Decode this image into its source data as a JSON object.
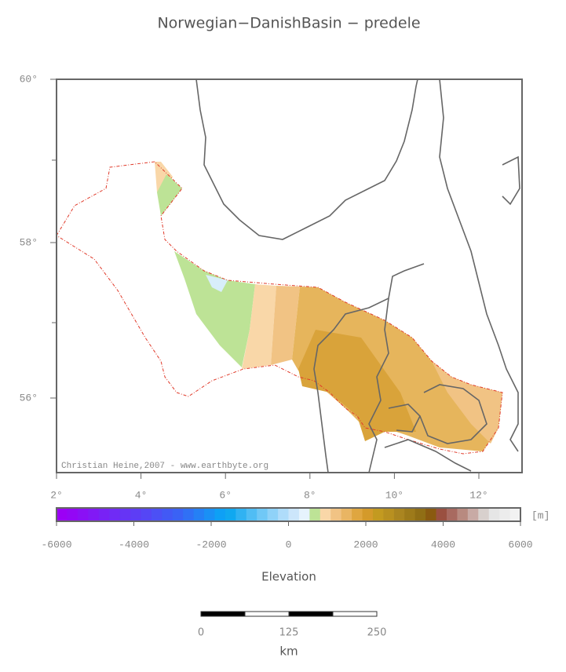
{
  "title": "Norwegian−DanishBasin − predele",
  "map": {
    "lat_labels": [
      "60°",
      "58°",
      "56°"
    ],
    "lon_labels": [
      "2°",
      "4°",
      "6°",
      "8°",
      "10°",
      "12°"
    ],
    "credit": "Christian Heine,2007 - www.earthbyte.org"
  },
  "colorbar": {
    "range": [
      -6000,
      6000
    ],
    "ticks": [
      -6000,
      -4000,
      -2000,
      0,
      2000,
      4000,
      6000
    ],
    "unit": "[m]",
    "label": "Elevation"
  },
  "scale_bar": {
    "labels": [
      "0",
      "125",
      "250"
    ],
    "unit": "km"
  }
}
